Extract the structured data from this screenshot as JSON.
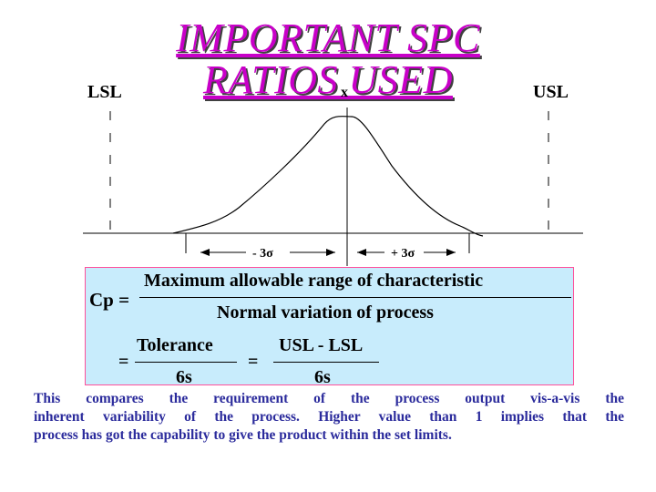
{
  "title": {
    "line1": "IMPORTANT SPC",
    "line2": "RATIOS USED"
  },
  "diagram": {
    "lsl_label": "LSL",
    "usl_label": "USL",
    "mean_label": "x",
    "minus_label": "- 3σ",
    "plus_label": "+ 3σ"
  },
  "formula": {
    "cp_label": "Cp =",
    "numerator": "Maximum allowable range of characteristic",
    "denominator": "Normal variation of process",
    "equals": "=",
    "tolerance": "Tolerance",
    "six_s_1": "6s",
    "usl_minus_lsl": "USL - LSL",
    "six_s_2": "6s"
  },
  "description": {
    "line1": "This compares the requirement of the process output vis-a-vis the",
    "line2": "inherent variability of the process. Higher value than 1 implies that the",
    "line3": "process has got the capability to give the product within the set limits."
  },
  "colors": {
    "title": "#c800c8",
    "formula_bg": "#c8ecfc",
    "formula_border": "#ff4f9a",
    "description_text": "#2b2b9c"
  }
}
